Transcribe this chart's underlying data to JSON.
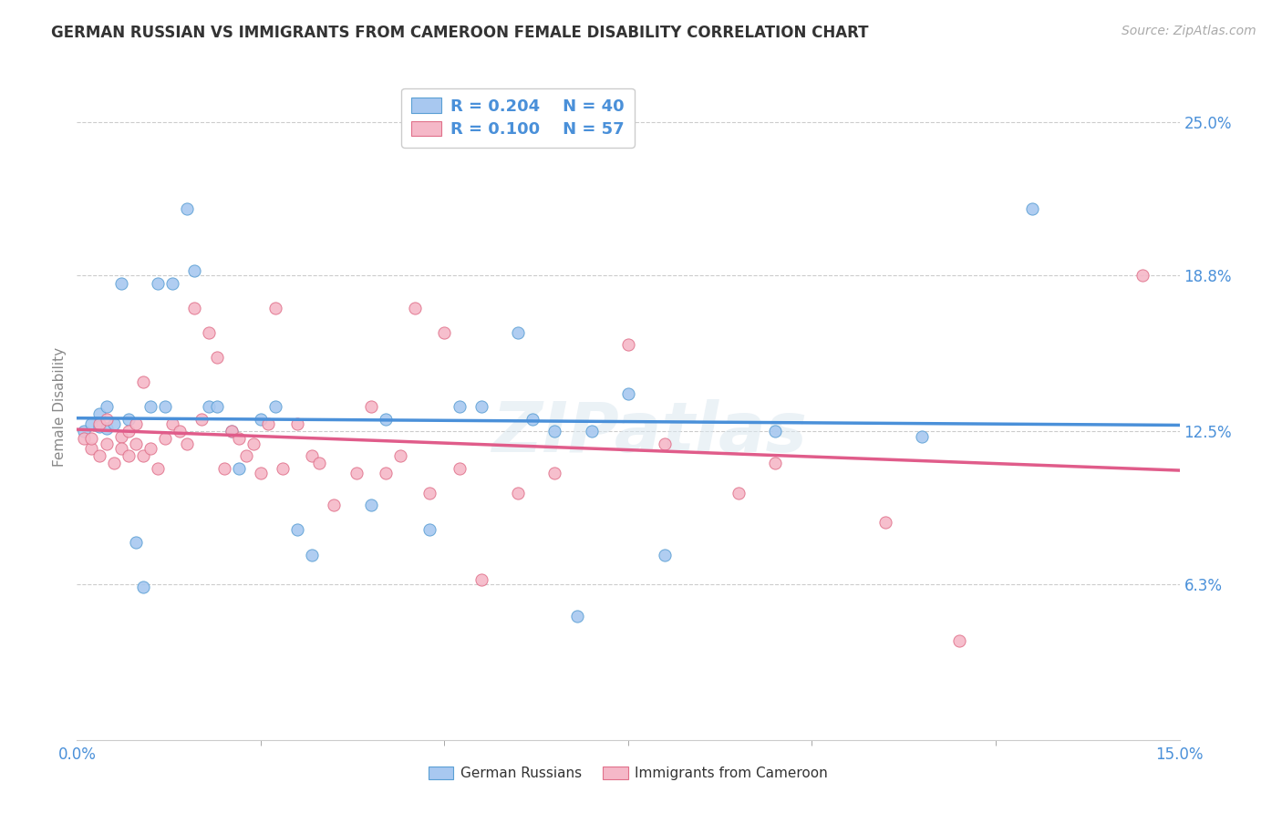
{
  "title": "GERMAN RUSSIAN VS IMMIGRANTS FROM CAMEROON FEMALE DISABILITY CORRELATION CHART",
  "source": "Source: ZipAtlas.com",
  "ylabel": "Female Disability",
  "xlim": [
    0.0,
    0.15
  ],
  "ylim": [
    0.0,
    0.27
  ],
  "y_tick_values_right": [
    0.063,
    0.125,
    0.188,
    0.25
  ],
  "y_tick_labels_right": [
    "6.3%",
    "12.5%",
    "18.8%",
    "25.0%"
  ],
  "gridline_values": [
    0.063,
    0.125,
    0.188,
    0.25
  ],
  "blue_label": "German Russians",
  "pink_label": "Immigrants from Cameroon",
  "blue_R": 0.204,
  "blue_N": 40,
  "pink_R": 0.1,
  "pink_N": 57,
  "blue_color": "#a8c8f0",
  "pink_color": "#f5b8c8",
  "blue_edge_color": "#5a9fd4",
  "pink_edge_color": "#e0708a",
  "blue_line_color": "#4a90d9",
  "pink_line_color": "#e05c8a",
  "blue_x": [
    0.001,
    0.002,
    0.003,
    0.003,
    0.004,
    0.004,
    0.005,
    0.006,
    0.007,
    0.008,
    0.009,
    0.01,
    0.011,
    0.012,
    0.013,
    0.015,
    0.016,
    0.018,
    0.019,
    0.021,
    0.022,
    0.025,
    0.027,
    0.03,
    0.032,
    0.04,
    0.042,
    0.048,
    0.052,
    0.055,
    0.06,
    0.062,
    0.065,
    0.068,
    0.07,
    0.075,
    0.08,
    0.095,
    0.115,
    0.13
  ],
  "blue_y": [
    0.125,
    0.128,
    0.127,
    0.132,
    0.126,
    0.135,
    0.128,
    0.185,
    0.13,
    0.08,
    0.062,
    0.135,
    0.185,
    0.135,
    0.185,
    0.215,
    0.19,
    0.135,
    0.135,
    0.125,
    0.11,
    0.13,
    0.135,
    0.085,
    0.075,
    0.095,
    0.13,
    0.085,
    0.135,
    0.135,
    0.165,
    0.13,
    0.125,
    0.05,
    0.125,
    0.14,
    0.075,
    0.125,
    0.123,
    0.215
  ],
  "pink_x": [
    0.001,
    0.002,
    0.002,
    0.003,
    0.003,
    0.004,
    0.004,
    0.005,
    0.006,
    0.006,
    0.007,
    0.007,
    0.008,
    0.008,
    0.009,
    0.009,
    0.01,
    0.011,
    0.012,
    0.013,
    0.014,
    0.015,
    0.016,
    0.017,
    0.018,
    0.019,
    0.02,
    0.021,
    0.022,
    0.023,
    0.024,
    0.025,
    0.026,
    0.027,
    0.028,
    0.03,
    0.032,
    0.033,
    0.035,
    0.038,
    0.04,
    0.042,
    0.044,
    0.046,
    0.048,
    0.05,
    0.052,
    0.055,
    0.06,
    0.065,
    0.075,
    0.08,
    0.09,
    0.095,
    0.11,
    0.12,
    0.145
  ],
  "pink_y": [
    0.122,
    0.118,
    0.122,
    0.115,
    0.128,
    0.12,
    0.13,
    0.112,
    0.123,
    0.118,
    0.125,
    0.115,
    0.128,
    0.12,
    0.115,
    0.145,
    0.118,
    0.11,
    0.122,
    0.128,
    0.125,
    0.12,
    0.175,
    0.13,
    0.165,
    0.155,
    0.11,
    0.125,
    0.122,
    0.115,
    0.12,
    0.108,
    0.128,
    0.175,
    0.11,
    0.128,
    0.115,
    0.112,
    0.095,
    0.108,
    0.135,
    0.108,
    0.115,
    0.175,
    0.1,
    0.165,
    0.11,
    0.065,
    0.1,
    0.108,
    0.16,
    0.12,
    0.1,
    0.112,
    0.088,
    0.04,
    0.188
  ],
  "background_color": "#ffffff",
  "watermark": "ZIPatlas"
}
